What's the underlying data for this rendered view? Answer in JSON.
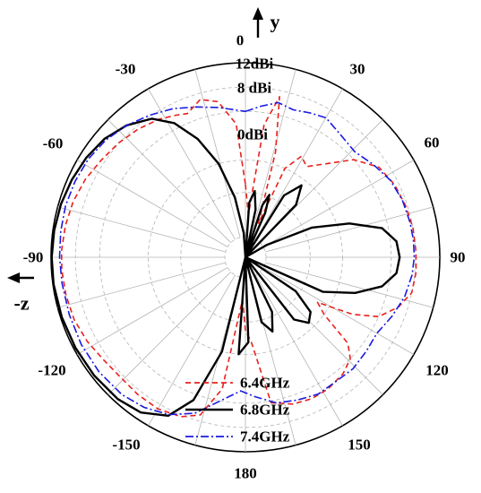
{
  "chart_data": {
    "type": "polar-line",
    "title": "",
    "radial_ticks": [
      {
        "label": "0dBi"
      },
      {
        "label": "8 dBi"
      },
      {
        "label": "12dBi"
      }
    ],
    "angle_labels": [
      "0",
      "30",
      "60",
      "90",
      "120",
      "150",
      "180",
      "-150",
      "-120",
      "-90",
      "-60",
      "-30"
    ],
    "axis_names": {
      "up": "y",
      "left": "-z"
    },
    "r_range_dbi": [
      -20,
      12
    ],
    "angle_step_deg": 15,
    "series": [
      {
        "name": "6.4GHz",
        "color": "#e8201c",
        "style": "dashed",
        "points": [
          [
            0,
            -8
          ],
          [
            4,
            -13
          ],
          [
            8,
            2
          ],
          [
            12,
            7
          ],
          [
            16,
            -2
          ],
          [
            19,
            -12
          ],
          [
            21,
            -14
          ],
          [
            24,
            -4
          ],
          [
            29,
            -1
          ],
          [
            34,
            -2
          ],
          [
            40,
            0
          ],
          [
            48,
            4
          ],
          [
            56,
            6.5
          ],
          [
            64,
            7.3
          ],
          [
            72,
            7.7
          ],
          [
            80,
            8
          ],
          [
            88,
            8.1
          ],
          [
            95,
            8.2
          ],
          [
            102,
            8
          ],
          [
            108,
            6.5
          ],
          [
            114,
            4
          ],
          [
            118,
            0
          ],
          [
            122,
            -6
          ],
          [
            126,
            -4
          ],
          [
            130,
            2
          ],
          [
            134,
            4
          ],
          [
            140,
            5
          ],
          [
            148,
            5.6
          ],
          [
            155,
            5.7
          ],
          [
            162,
            5.4
          ],
          [
            170,
            4.3
          ],
          [
            176,
            -6
          ],
          [
            180,
            -8
          ],
          [
            184,
            -13
          ],
          [
            190,
            2
          ],
          [
            196,
            7
          ],
          [
            202,
            8.3
          ],
          [
            210,
            8.8
          ],
          [
            218,
            8.7
          ],
          [
            226,
            8.5
          ],
          [
            234,
            8.8
          ],
          [
            242,
            9.5
          ],
          [
            250,
            10
          ],
          [
            258,
            10.2
          ],
          [
            266,
            10.3
          ],
          [
            272,
            10.3
          ],
          [
            280,
            10.1
          ],
          [
            288,
            9.8
          ],
          [
            296,
            9.3
          ],
          [
            304,
            8.6
          ],
          [
            312,
            8.1
          ],
          [
            320,
            7.5
          ],
          [
            328,
            6.8
          ],
          [
            334,
            6
          ],
          [
            338,
            5.5
          ],
          [
            344,
            7
          ],
          [
            350,
            6
          ],
          [
            356,
            2
          ],
          [
            360,
            -8
          ]
        ]
      },
      {
        "name": "6.8GHz",
        "color": "#000000",
        "style": "solid",
        "points": [
          [
            0,
            -20
          ],
          [
            4,
            -11
          ],
          [
            8,
            -9
          ],
          [
            12,
            -12
          ],
          [
            15,
            -20
          ],
          [
            18,
            -11
          ],
          [
            21,
            -9
          ],
          [
            24,
            -12
          ],
          [
            27,
            -20
          ],
          [
            32,
            -8
          ],
          [
            38,
            -5
          ],
          [
            44,
            -8
          ],
          [
            52,
            -20
          ],
          [
            60,
            -16
          ],
          [
            66,
            -8
          ],
          [
            72,
            -2
          ],
          [
            78,
            3
          ],
          [
            84,
            5
          ],
          [
            90,
            5.4
          ],
          [
            96,
            5
          ],
          [
            102,
            3
          ],
          [
            108,
            -1
          ],
          [
            114,
            -6
          ],
          [
            120,
            -20
          ],
          [
            124,
            -10
          ],
          [
            130,
            -6
          ],
          [
            136,
            -5
          ],
          [
            142,
            -7
          ],
          [
            148,
            -20
          ],
          [
            154,
            -10
          ],
          [
            160,
            -7
          ],
          [
            166,
            -9
          ],
          [
            172,
            -20
          ],
          [
            178,
            -6
          ],
          [
            184,
            -4
          ],
          [
            188,
            -20
          ],
          [
            194,
            -4
          ],
          [
            200,
            5
          ],
          [
            206,
            9
          ],
          [
            214,
            10.8
          ],
          [
            222,
            11.4
          ],
          [
            232,
            11.6
          ],
          [
            242,
            11.7
          ],
          [
            252,
            11.8
          ],
          [
            262,
            11.9
          ],
          [
            270,
            11.9
          ],
          [
            278,
            11.8
          ],
          [
            286,
            11.6
          ],
          [
            294,
            11.3
          ],
          [
            302,
            10.9
          ],
          [
            310,
            10.3
          ],
          [
            318,
            9.2
          ],
          [
            326,
            7.5
          ],
          [
            332,
            5
          ],
          [
            338,
            1
          ],
          [
            344,
            -4
          ],
          [
            350,
            -10
          ],
          [
            356,
            -16
          ],
          [
            360,
            -20
          ]
        ]
      },
      {
        "name": "7.4GHz",
        "color": "#1a1ae0",
        "style": "dashdot",
        "points": [
          [
            0,
            4
          ],
          [
            6,
            5
          ],
          [
            12,
            6
          ],
          [
            18,
            5.5
          ],
          [
            24,
            6
          ],
          [
            30,
            6.5
          ],
          [
            38,
            5.5
          ],
          [
            46,
            5
          ],
          [
            54,
            6
          ],
          [
            62,
            7
          ],
          [
            70,
            7.5
          ],
          [
            78,
            7.7
          ],
          [
            84,
            7.8
          ],
          [
            90,
            7.8
          ],
          [
            96,
            7.6
          ],
          [
            104,
            7
          ],
          [
            112,
            6
          ],
          [
            120,
            5
          ],
          [
            128,
            5.2
          ],
          [
            136,
            5.5
          ],
          [
            144,
            5.3
          ],
          [
            152,
            5.5
          ],
          [
            160,
            5
          ],
          [
            168,
            4.5
          ],
          [
            176,
            3
          ],
          [
            182,
            2
          ],
          [
            190,
            4
          ],
          [
            198,
            7
          ],
          [
            206,
            8.8
          ],
          [
            214,
            9.8
          ],
          [
            222,
            10.4
          ],
          [
            232,
            10.6
          ],
          [
            242,
            10.6
          ],
          [
            252,
            10.5
          ],
          [
            262,
            10.5
          ],
          [
            270,
            10.6
          ],
          [
            278,
            10.7
          ],
          [
            286,
            10.8
          ],
          [
            294,
            10.7
          ],
          [
            302,
            10.5
          ],
          [
            310,
            10
          ],
          [
            318,
            9.2
          ],
          [
            326,
            8.2
          ],
          [
            334,
            7.2
          ],
          [
            342,
            6
          ],
          [
            350,
            5
          ],
          [
            360,
            4
          ]
        ]
      }
    ]
  }
}
